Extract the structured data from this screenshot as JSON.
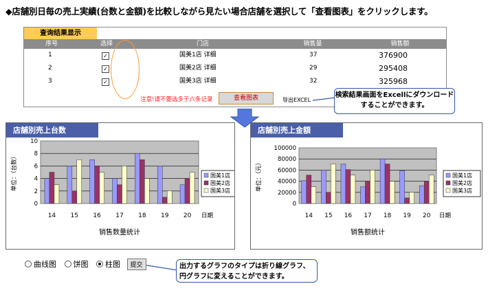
{
  "heading": "◆店舗別日毎の売上実績(台数と金額)を比較しながら見たい場合店舗を選択して「查看图表」をクリックします。",
  "panel": {
    "tab_label": "查询结果显示",
    "columns": [
      "序号",
      "选择",
      "门店",
      "销售量",
      "销售额"
    ],
    "rows": [
      {
        "no": "1",
        "checked": "✓",
        "store": "国美1店 详细",
        "qty": "37",
        "amount": "376900"
      },
      {
        "no": "2",
        "checked": "✓",
        "store": "国美2店 详细",
        "qty": "29",
        "amount": "295408"
      },
      {
        "no": "3",
        "checked": "✓",
        "store": "国美3店 详细",
        "qty": "32",
        "amount": "325968"
      }
    ],
    "warning": "注意!请不要选多于六条记录",
    "view_button": "查看图表",
    "export_link": "导出EXCEL"
  },
  "callout_export": "検索結果画面をExcellにダウンロードすることができます。",
  "callout_type": "出力するグラフのタイプは折り線グラフ、円グラフに変えることができます。",
  "chart_options": {
    "line": "曲线图",
    "pie": "饼图",
    "bar": "柱图",
    "selected": "bar",
    "submit": "提交"
  },
  "colors": {
    "s1": "#9999ff",
    "s2": "#993366",
    "s3": "#ffffcc",
    "plot_bg": "#c0c0c0",
    "title_bg": "#4a5fa8"
  },
  "chart_data": [
    {
      "type": "bar",
      "title": "店舗別売上台数",
      "xlabel": "销售数量统计",
      "ylabel": "单位：（台数）",
      "x_unit": "日期",
      "categories": [
        "14",
        "15",
        "16",
        "17",
        "18",
        "19",
        "20"
      ],
      "ylim": [
        0,
        10
      ],
      "yticks": [
        "0",
        "2",
        "4",
        "6",
        "8",
        "10"
      ],
      "series": [
        {
          "name": "国美1店",
          "values": [
            4,
            6,
            7,
            4,
            8,
            6,
            3
          ]
        },
        {
          "name": "国美2店",
          "values": [
            5,
            2,
            6,
            3,
            7,
            1,
            4
          ]
        },
        {
          "name": "国美3店",
          "values": [
            3,
            7,
            5,
            6,
            4,
            2,
            5
          ]
        }
      ],
      "legend": "right"
    },
    {
      "type": "bar",
      "title": "店舗別売上金額",
      "xlabel": "销售额统计",
      "ylabel": "单位：（元）",
      "x_unit": "日期",
      "categories": [
        "14",
        "15",
        "16",
        "17",
        "18",
        "19",
        "20"
      ],
      "ylim": [
        0,
        100000
      ],
      "yticks": [
        "0",
        "20000",
        "40000",
        "60000",
        "80000",
        "100000"
      ],
      "series": [
        {
          "name": "国美1店",
          "values": [
            41000,
            60000,
            71000,
            30000,
            80000,
            59000,
            32000
          ]
        },
        {
          "name": "国美2店",
          "values": [
            51000,
            20000,
            61000,
            40000,
            71000,
            10000,
            40000
          ]
        },
        {
          "name": "国美3店",
          "values": [
            30000,
            71000,
            51000,
            60000,
            40000,
            20000,
            51000
          ]
        }
      ],
      "legend": "right"
    }
  ]
}
